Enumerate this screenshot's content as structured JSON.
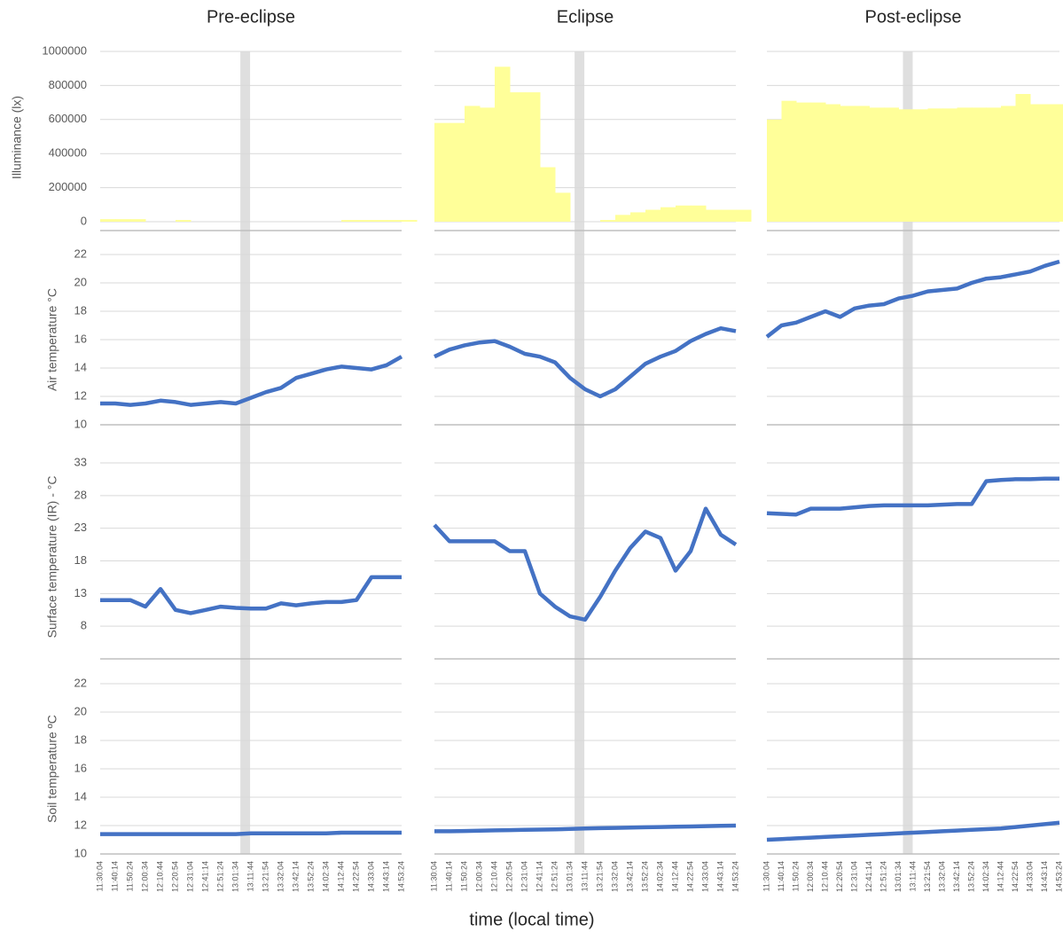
{
  "chart_data": {
    "type": "small-multiples",
    "xlabel": "time (local time)",
    "categories": [
      "11:30:04",
      "11:40:14",
      "11:50:24",
      "12:00:34",
      "12:10:44",
      "12:20:54",
      "12:31:04",
      "12:41:14",
      "12:51:24",
      "13:01:34",
      "13:11:44",
      "13:21:54",
      "13:32:04",
      "13:42:14",
      "13:52:24",
      "14:02:34",
      "14:12:44",
      "14:22:54",
      "14:33:04",
      "14:43:14",
      "14:53:24"
    ],
    "rows": [
      {
        "ylabel": "Illuminance (lx)",
        "type": "area",
        "color": "#ffff99",
        "ylim": [
          0,
          1000000
        ],
        "yticks": [
          0,
          200000,
          400000,
          600000,
          800000,
          1000000
        ]
      },
      {
        "ylabel": "Air temperature °C",
        "type": "line",
        "color": "#4472c4",
        "ylim": [
          10,
          22
        ],
        "yticks": [
          10,
          12,
          14,
          16,
          18,
          20,
          22
        ]
      },
      {
        "ylabel": "Surface temperature (IR) - °C",
        "type": "line",
        "color": "#4472c4",
        "ylim": [
          3,
          33
        ],
        "yticks": [
          8,
          13,
          18,
          23,
          28,
          33
        ]
      },
      {
        "ylabel": "Soil temperature ºC",
        "type": "line",
        "color": "#4472c4",
        "ylim": [
          10,
          22
        ],
        "yticks": [
          10,
          12,
          14,
          16,
          18,
          20,
          22
        ]
      }
    ],
    "columns": [
      {
        "title": "Pre-eclipse",
        "values": [
          [
            15000,
            15000,
            15000,
            0,
            0,
            10000,
            0,
            0,
            0,
            0,
            0,
            0,
            0,
            0,
            0,
            0,
            10000,
            10000,
            10000,
            10000,
            10000
          ],
          [
            11.5,
            11.5,
            11.4,
            11.5,
            11.7,
            11.6,
            11.4,
            11.5,
            11.6,
            11.5,
            11.9,
            12.3,
            12.6,
            13.3,
            13.6,
            13.9,
            14.1,
            14.0,
            13.9,
            14.2,
            14.8
          ],
          [
            12,
            12,
            12,
            11,
            13.7,
            10.5,
            10,
            10.5,
            11,
            10.8,
            10.7,
            10.7,
            11.5,
            11.2,
            11.5,
            11.7,
            11.7,
            12,
            15.5,
            15.5,
            15.5
          ],
          [
            11.4,
            11.4,
            11.4,
            11.4,
            11.4,
            11.4,
            11.4,
            11.4,
            11.4,
            11.4,
            11.45,
            11.45,
            11.45,
            11.45,
            11.45,
            11.45,
            11.5,
            11.5,
            11.5,
            11.5,
            11.5
          ]
        ]
      },
      {
        "title": "Eclipse",
        "values": [
          [
            580000,
            580000,
            680000,
            670000,
            910000,
            760000,
            760000,
            320000,
            170000,
            0,
            0,
            10000,
            40000,
            55000,
            70000,
            85000,
            95000,
            95000,
            70000,
            70000,
            70000
          ],
          [
            14.8,
            15.3,
            15.6,
            15.8,
            15.9,
            15.5,
            15.0,
            14.8,
            14.4,
            13.3,
            12.5,
            12.0,
            12.5,
            13.4,
            14.3,
            14.8,
            15.2,
            15.9,
            16.4,
            16.8,
            16.6
          ],
          [
            23.5,
            21,
            21,
            21,
            21,
            19.5,
            19.5,
            13,
            11,
            9.5,
            9,
            12.5,
            16.5,
            20,
            22.5,
            21.5,
            16.5,
            19.5,
            26,
            22,
            20.5
          ],
          [
            11.6,
            11.6,
            11.62,
            11.64,
            11.66,
            11.68,
            11.7,
            11.72,
            11.74,
            11.76,
            11.8,
            11.82,
            11.84,
            11.86,
            11.88,
            11.9,
            11.92,
            11.94,
            11.96,
            11.98,
            12.0
          ]
        ]
      },
      {
        "title": "Post-eclipse",
        "values": [
          [
            600000,
            710000,
            700000,
            700000,
            690000,
            680000,
            680000,
            670000,
            670000,
            660000,
            660000,
            665000,
            665000,
            670000,
            670000,
            670000,
            680000,
            750000,
            690000,
            690000,
            690000
          ],
          [
            16.2,
            17.0,
            17.2,
            17.6,
            18.0,
            17.6,
            18.2,
            18.4,
            18.5,
            18.9,
            19.1,
            19.4,
            19.5,
            19.6,
            20.0,
            20.3,
            20.4,
            20.6,
            20.8,
            21.2,
            21.5
          ],
          [
            25.3,
            25.2,
            25.1,
            26,
            26,
            26,
            26.2,
            26.4,
            26.5,
            26.5,
            26.5,
            26.5,
            26.6,
            26.7,
            26.7,
            30.2,
            30.4,
            30.5,
            30.5,
            30.6,
            30.6
          ],
          [
            11.0,
            11.05,
            11.1,
            11.15,
            11.2,
            11.25,
            11.3,
            11.35,
            11.4,
            11.45,
            11.5,
            11.55,
            11.6,
            11.65,
            11.7,
            11.75,
            11.8,
            11.9,
            12.0,
            12.1,
            12.2
          ]
        ]
      }
    ]
  }
}
